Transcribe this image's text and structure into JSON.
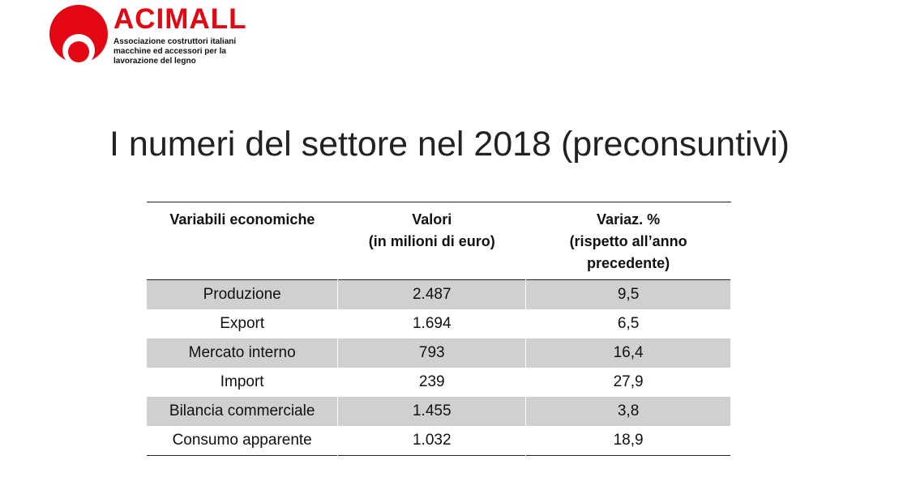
{
  "logo": {
    "brand": "ACIMALL",
    "tagline": [
      "Associazione costruttori italiani",
      "macchine ed accessori per la",
      "lavorazione del legno"
    ],
    "color": "#e30613"
  },
  "title": "I numeri del settore nel 2018 (preconsuntivi)",
  "table": {
    "headers": [
      [
        "Variabili economiche"
      ],
      [
        "Valori",
        "(in milioni di euro)"
      ],
      [
        "Variaz. %",
        "(rispetto all’anno",
        "precedente)"
      ]
    ],
    "rows": [
      [
        "Produzione",
        "2.487",
        "9,5"
      ],
      [
        "Export",
        "1.694",
        "6,5"
      ],
      [
        "Mercato interno",
        "793",
        "16,4"
      ],
      [
        "Import",
        "239",
        "27,9"
      ],
      [
        "Bilancia commerciale",
        "1.455",
        "3,8"
      ],
      [
        "Consumo apparente",
        "1.032",
        "18,9"
      ]
    ]
  }
}
